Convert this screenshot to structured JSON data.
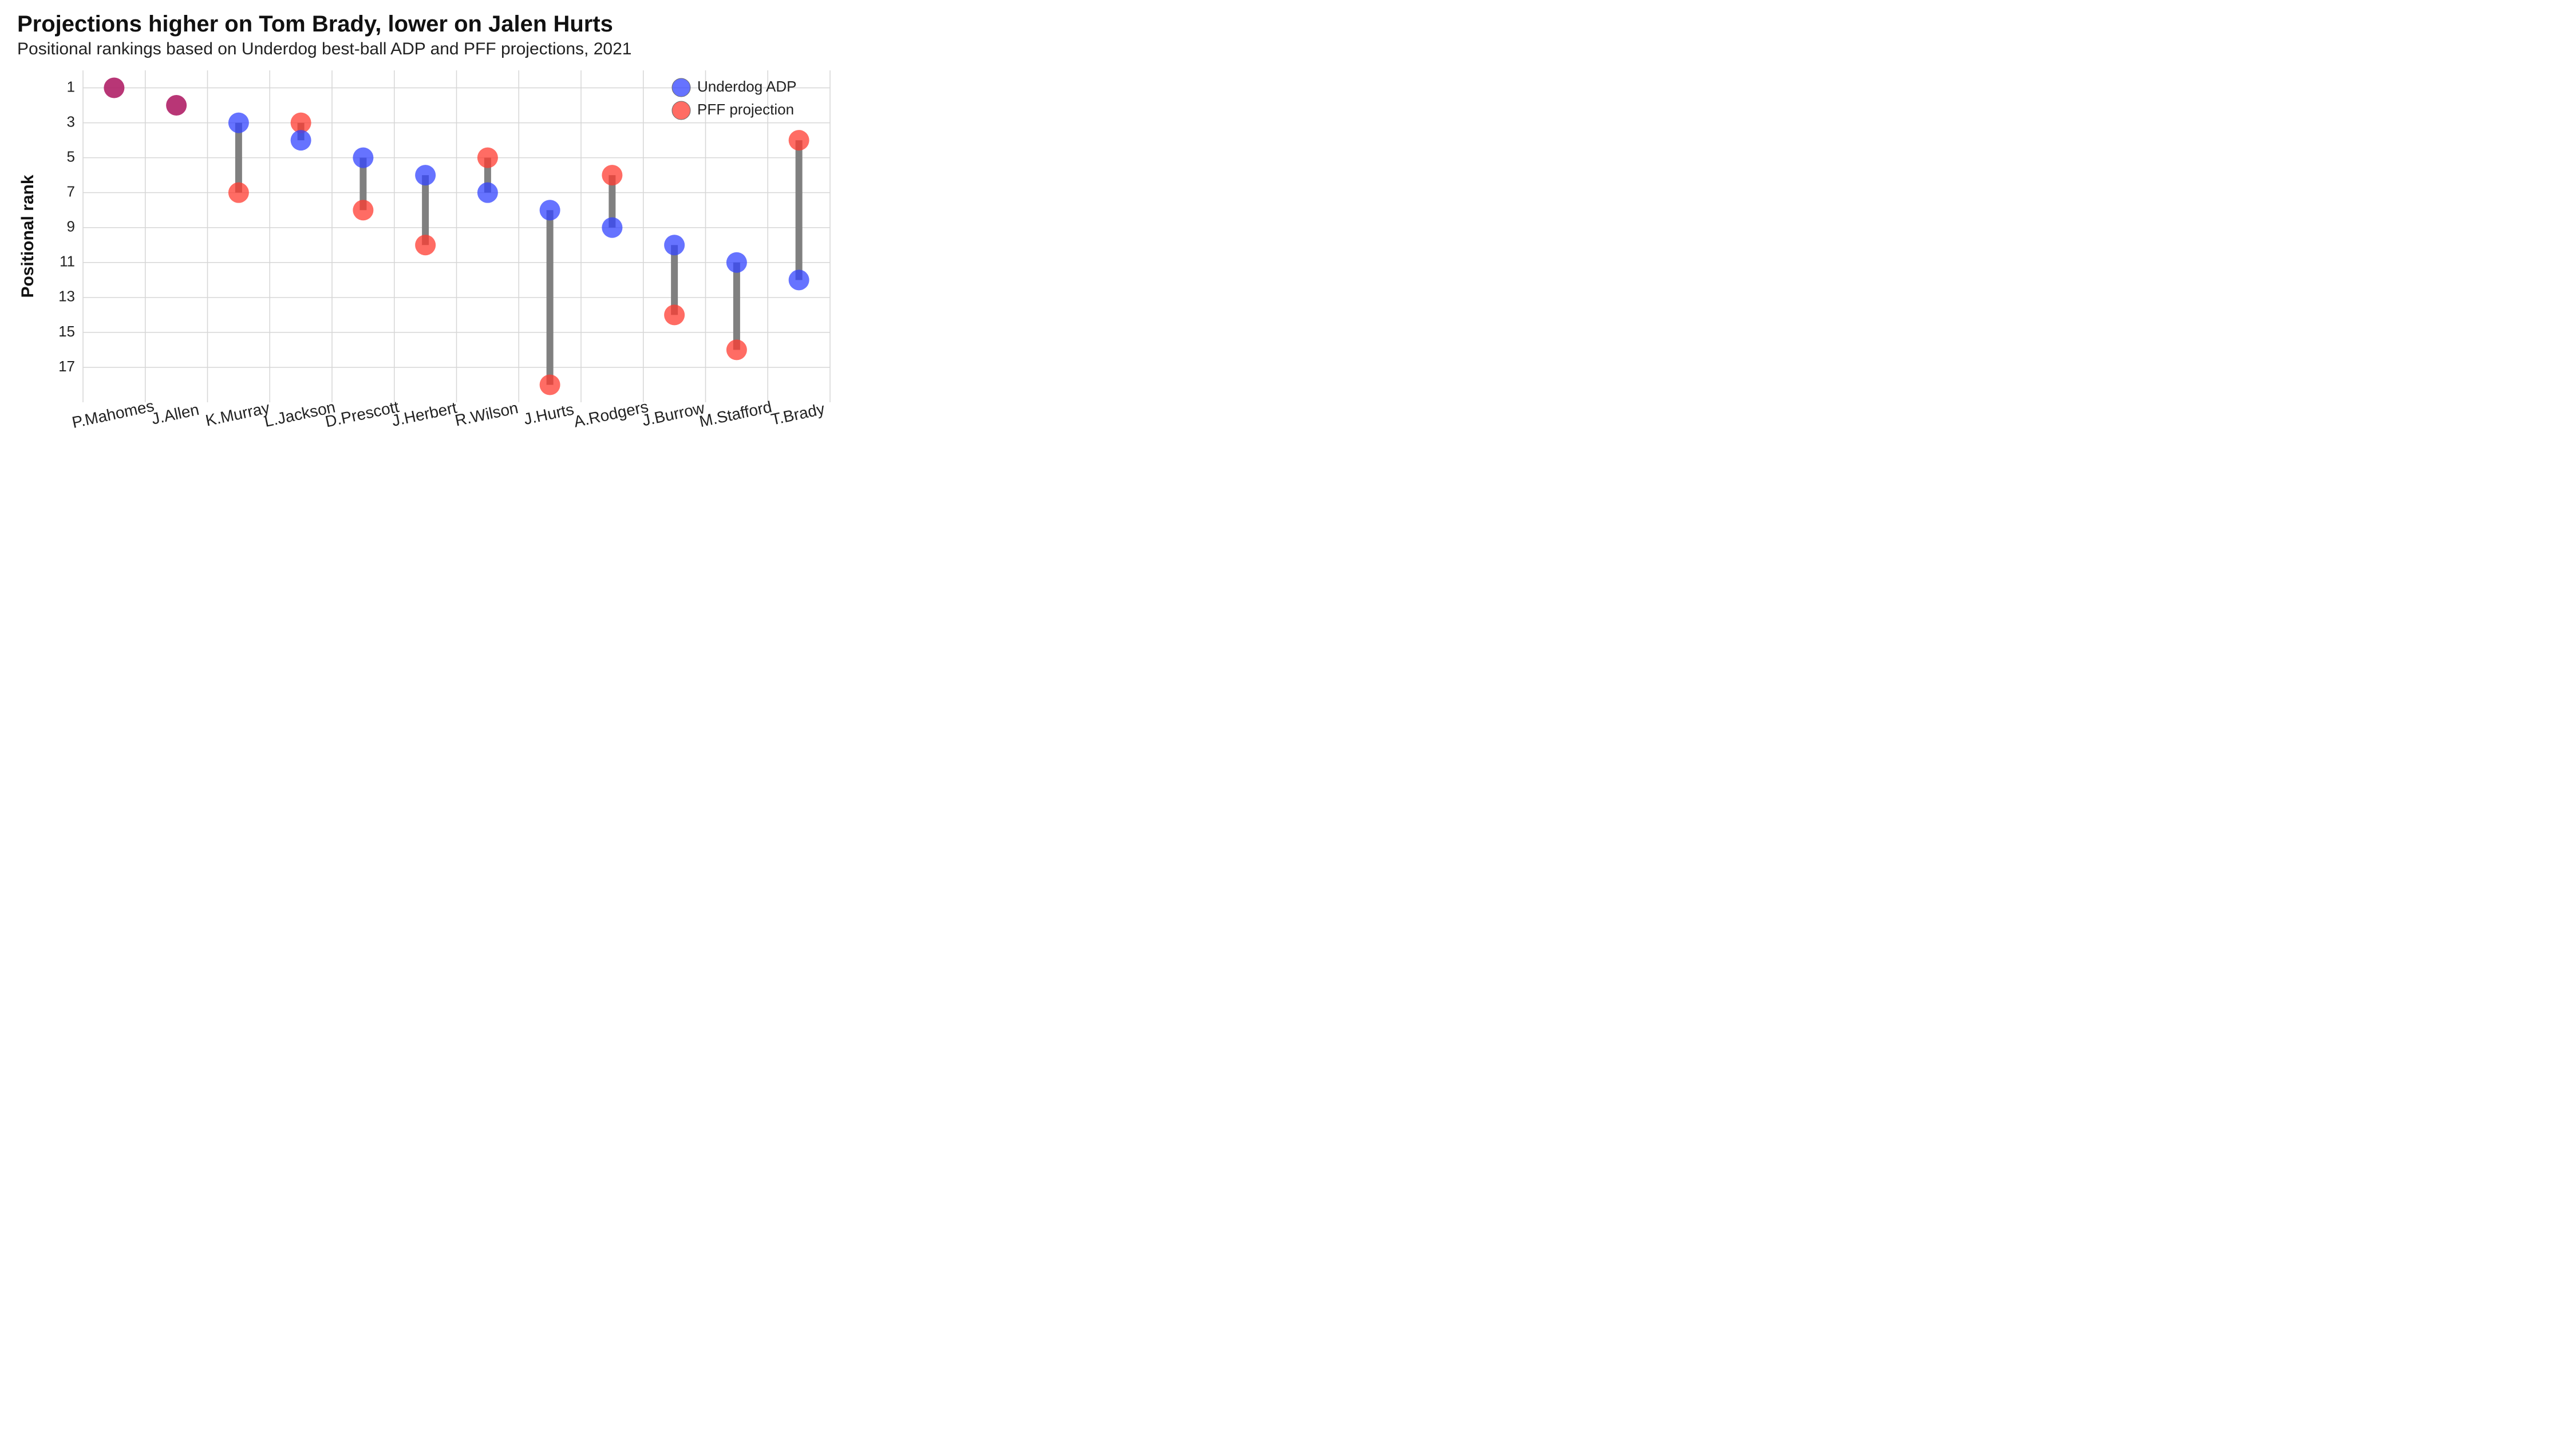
{
  "title": "Projections higher on Tom Brady, lower on Jalen Hurts",
  "subtitle": "Positional rankings based on Underdog best-ball ADP and PFF projections, 2021",
  "y_axis_label": "Positional rank",
  "legend": {
    "adp": "Underdog ADP",
    "pff": "PFF projection"
  },
  "chart": {
    "type": "dumbbell",
    "background_color": "#ffffff",
    "grid_color": "#d6d6d6",
    "connector_color": "#808080",
    "connector_width": 12,
    "marker_radius": 18,
    "marker_opacity": 0.75,
    "colors": {
      "adp": "#3344ff",
      "pff": "#ff3b30",
      "same": "#b02067"
    },
    "font": {
      "title_size": 40,
      "subtitle_size": 30,
      "axis_label_size": 30,
      "tick_size": 26,
      "x_label_size": 28,
      "legend_size": 26
    },
    "y": {
      "min": 0,
      "max": 19,
      "ticks": [
        1,
        3,
        5,
        7,
        9,
        11,
        13,
        15,
        17
      ]
    },
    "players": [
      {
        "name": "P.Mahomes",
        "adp": 1,
        "pff": 1
      },
      {
        "name": "J.Allen",
        "adp": 2,
        "pff": 2
      },
      {
        "name": "K.Murray",
        "adp": 3,
        "pff": 7
      },
      {
        "name": "L.Jackson",
        "adp": 4,
        "pff": 3
      },
      {
        "name": "D.Prescott",
        "adp": 5,
        "pff": 8
      },
      {
        "name": "J.Herbert",
        "adp": 6,
        "pff": 10
      },
      {
        "name": "R.Wilson",
        "adp": 7,
        "pff": 5
      },
      {
        "name": "J.Hurts",
        "adp": 8,
        "pff": 18
      },
      {
        "name": "A.Rodgers",
        "adp": 9,
        "pff": 6
      },
      {
        "name": "J.Burrow",
        "adp": 10,
        "pff": 14
      },
      {
        "name": "M.Stafford",
        "adp": 11,
        "pff": 16
      },
      {
        "name": "T.Brady",
        "adp": 12,
        "pff": 4
      }
    ]
  }
}
